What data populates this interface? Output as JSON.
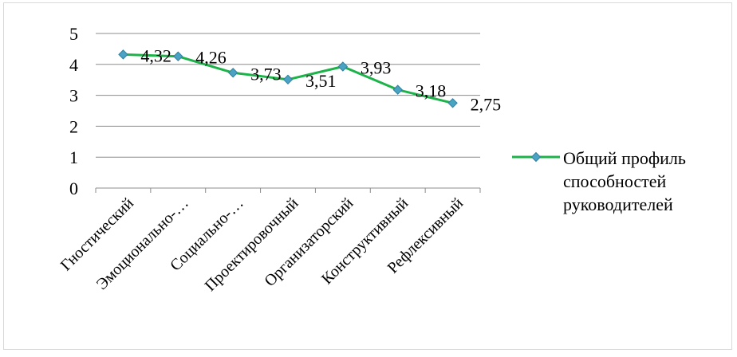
{
  "chart_data": {
    "type": "line",
    "categories": [
      "Гностический",
      "Эмоционально-…",
      "Социально-…",
      "Проектировочный",
      "Организаторский",
      "Конструктивный",
      "Рефлексивный"
    ],
    "series": [
      {
        "name": "Общий профиль способностей руководителей",
        "values": [
          4.32,
          4.26,
          3.73,
          3.51,
          3.93,
          3.18,
          2.75
        ],
        "labels": [
          "4,32",
          "4,26",
          "3,73",
          "3,51",
          "3,93",
          "3,18",
          "2,75"
        ],
        "color": "#1db34a",
        "marker_color": "#4aa3c3"
      }
    ],
    "yticks": [
      "0",
      "1",
      "2",
      "3",
      "4",
      "5"
    ],
    "ylim": [
      0,
      5
    ],
    "grid": true,
    "legend": "right",
    "title": "",
    "xlabel": "",
    "ylabel": ""
  }
}
